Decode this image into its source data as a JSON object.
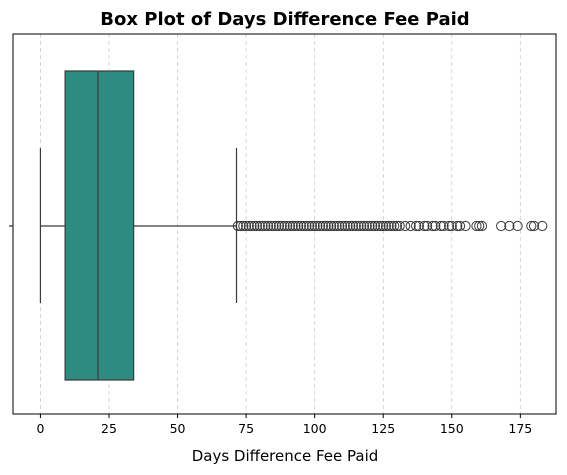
{
  "chart_data": {
    "type": "box",
    "title": "Box Plot of Days Difference Fee Paid",
    "xlabel": "Days Difference Fee Paid",
    "ylabel": "",
    "orientation": "horizontal",
    "xlim": [
      -10,
      188
    ],
    "xticks": [
      0,
      25,
      50,
      75,
      100,
      125,
      150,
      175
    ],
    "grid": {
      "x": true,
      "style": "dashed"
    },
    "box": {
      "whisker_low": 0,
      "q1": 9,
      "median": 21,
      "q3": 34,
      "whisker_high": 71.5,
      "color": "#2e8b82"
    },
    "outliers": {
      "dense_range": [
        72,
        131
      ],
      "sparse_values": [
        133,
        135,
        137,
        138,
        140,
        141,
        143,
        144,
        146,
        147,
        149,
        150,
        152,
        153,
        155,
        159,
        160,
        161,
        168,
        171,
        174,
        179,
        180,
        183
      ]
    }
  }
}
